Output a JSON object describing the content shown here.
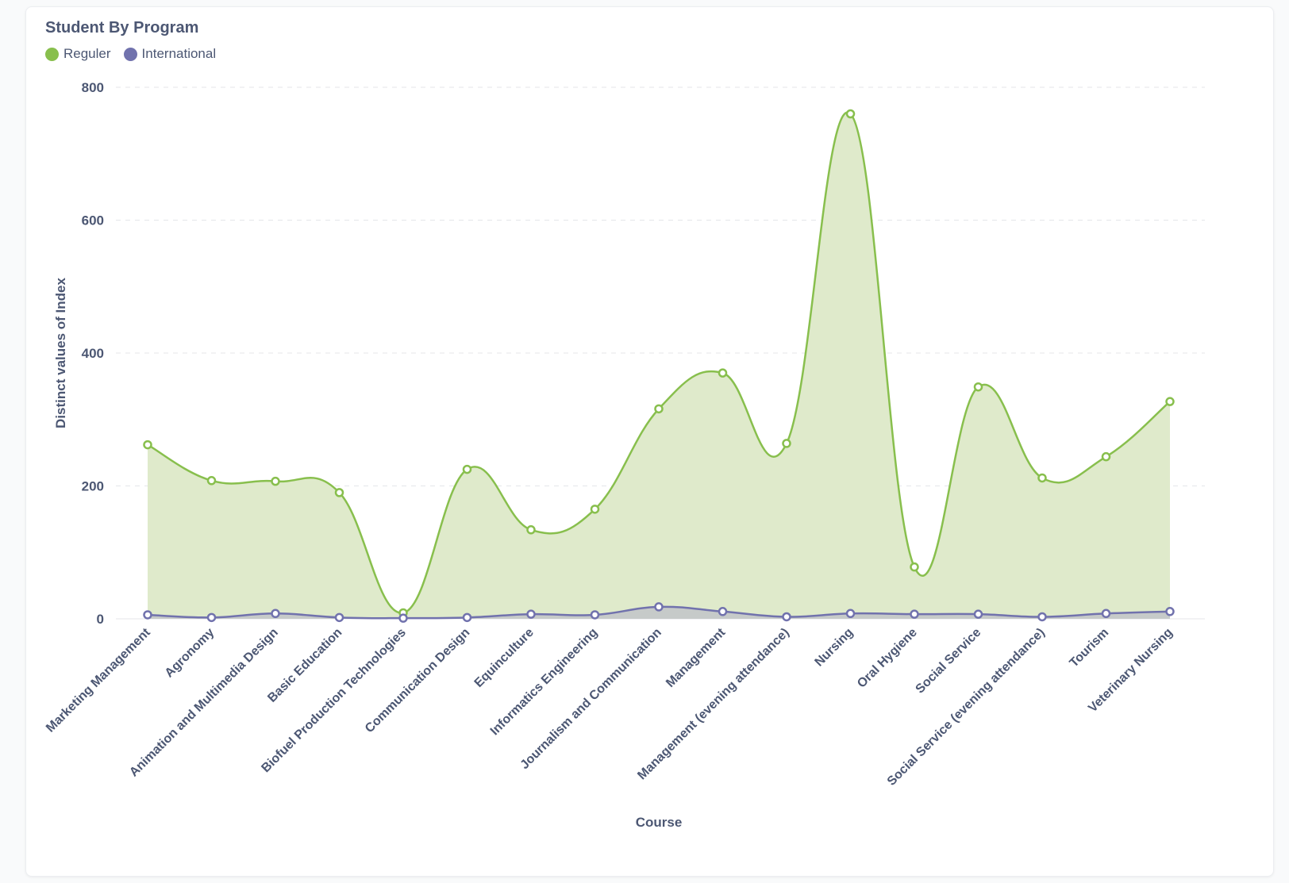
{
  "card": {
    "title": "Student By Program"
  },
  "chart_data": {
    "type": "area",
    "title": "Student By Program",
    "xlabel": "Course",
    "ylabel": "Distinct values of Index",
    "ylim": [
      0,
      800
    ],
    "yticks": [
      0,
      200,
      400,
      600,
      800
    ],
    "grid": true,
    "legend_position": "top-left",
    "categories": [
      "Marketing Management",
      "Agronomy",
      "Animation and Multimedia Design",
      "Basic Education",
      "Biofuel Production Technologies",
      "Communication Design",
      "Equinculture",
      "Informatics Engineering",
      "Journalism and Communication",
      "Management",
      "Management (evening attendance)",
      "Nursing",
      "Oral Hygiene",
      "Social Service",
      "Social Service (evening attendance)",
      "Tourism",
      "Veterinary Nursing"
    ],
    "series": [
      {
        "name": "Reguler",
        "color": "#88bf4d",
        "fill": "#dfeacb",
        "values": [
          262,
          208,
          207,
          190,
          9,
          225,
          134,
          165,
          316,
          370,
          264,
          760,
          78,
          349,
          212,
          244,
          327
        ]
      },
      {
        "name": "International",
        "color": "#7172ad",
        "fill": "#c3c7c9",
        "values": [
          6,
          2,
          8,
          2,
          1,
          2,
          7,
          6,
          18,
          11,
          3,
          8,
          7,
          7,
          3,
          8,
          11
        ]
      }
    ]
  }
}
